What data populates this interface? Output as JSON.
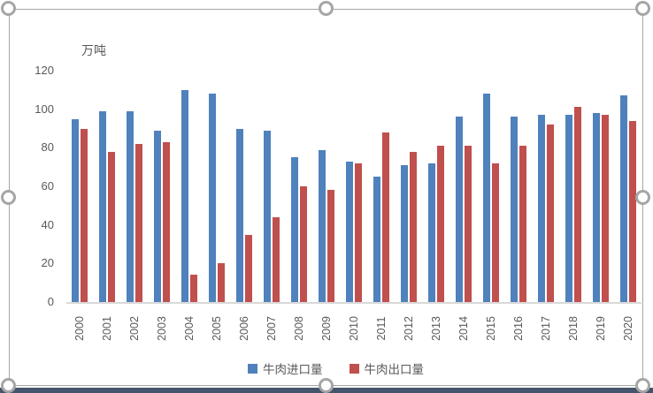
{
  "chart_data": {
    "type": "bar",
    "title": "",
    "unit_label": "万吨",
    "categories": [
      "2000",
      "2001",
      "2002",
      "2003",
      "2004",
      "2005",
      "2006",
      "2007",
      "2008",
      "2009",
      "2010",
      "2011",
      "2012",
      "2013",
      "2014",
      "2015",
      "2016",
      "2017",
      "2018",
      "2019",
      "2020"
    ],
    "series": [
      {
        "name": "牛肉进口量",
        "color": "#4F81BD",
        "values": [
          95,
          99,
          99,
          89,
          110,
          108,
          90,
          89,
          75,
          79,
          73,
          65,
          71,
          72,
          96,
          108,
          96,
          97,
          97,
          98,
          107
        ]
      },
      {
        "name": "牛肉出口量",
        "color": "#C0504D",
        "values": [
          90,
          78,
          82,
          83,
          14,
          20,
          35,
          44,
          60,
          58,
          72,
          88,
          78,
          81,
          81,
          72,
          81,
          92,
          101,
          97,
          94
        ]
      }
    ],
    "ylim": [
      0,
      120
    ],
    "yticks": [
      0,
      20,
      40,
      60,
      80,
      100,
      120
    ],
    "grid": false,
    "legend_position": "bottom",
    "x_label_rotation": 90
  },
  "colors": {
    "axis_text": "#595959",
    "axis_line": "#D9D9D9",
    "selection_handle": "#A6A6A6",
    "bottom_strip": "#44546A",
    "background": "#FFFFFF"
  }
}
